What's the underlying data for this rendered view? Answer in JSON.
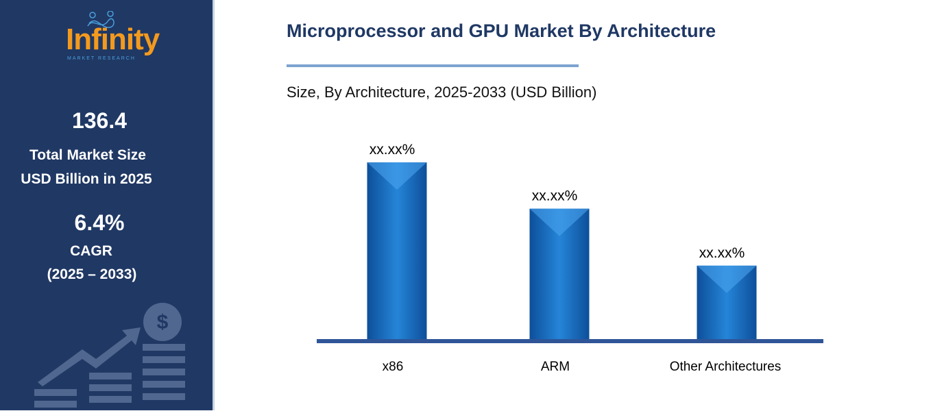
{
  "sidebar": {
    "logo_text": "Infinity",
    "logo_sub": "MARKET RESEARCH",
    "market_size": "136.4",
    "market_label_1": "Total Market Size",
    "market_label_2": "USD Billion in 2025",
    "cagr": "6.4%",
    "cagr_label": "CAGR",
    "cagr_period": "(2025 – 2033)"
  },
  "header": {
    "title": "Microprocessor and GPU Market By Architecture",
    "subtitle": "Size, By Architecture, 2025-2033 (USD Billion)"
  },
  "colors": {
    "sidebar": "#203864",
    "bar": "#1f77c9",
    "axis": "#2f5597",
    "logo": "#f39a1e"
  },
  "chart_data": {
    "type": "bar",
    "title": "Microprocessor and GPU Market By Architecture",
    "subtitle": "Size, By Architecture, 2025-2033 (USD Billion)",
    "categories": [
      "x86",
      "ARM",
      "Other Architectures"
    ],
    "values": [
      100,
      74,
      42
    ],
    "data_labels": [
      "xx.xx%",
      "xx.xx%",
      "xx.xx%"
    ],
    "ylim": [
      0,
      100
    ],
    "grid": false,
    "legend": "none"
  }
}
